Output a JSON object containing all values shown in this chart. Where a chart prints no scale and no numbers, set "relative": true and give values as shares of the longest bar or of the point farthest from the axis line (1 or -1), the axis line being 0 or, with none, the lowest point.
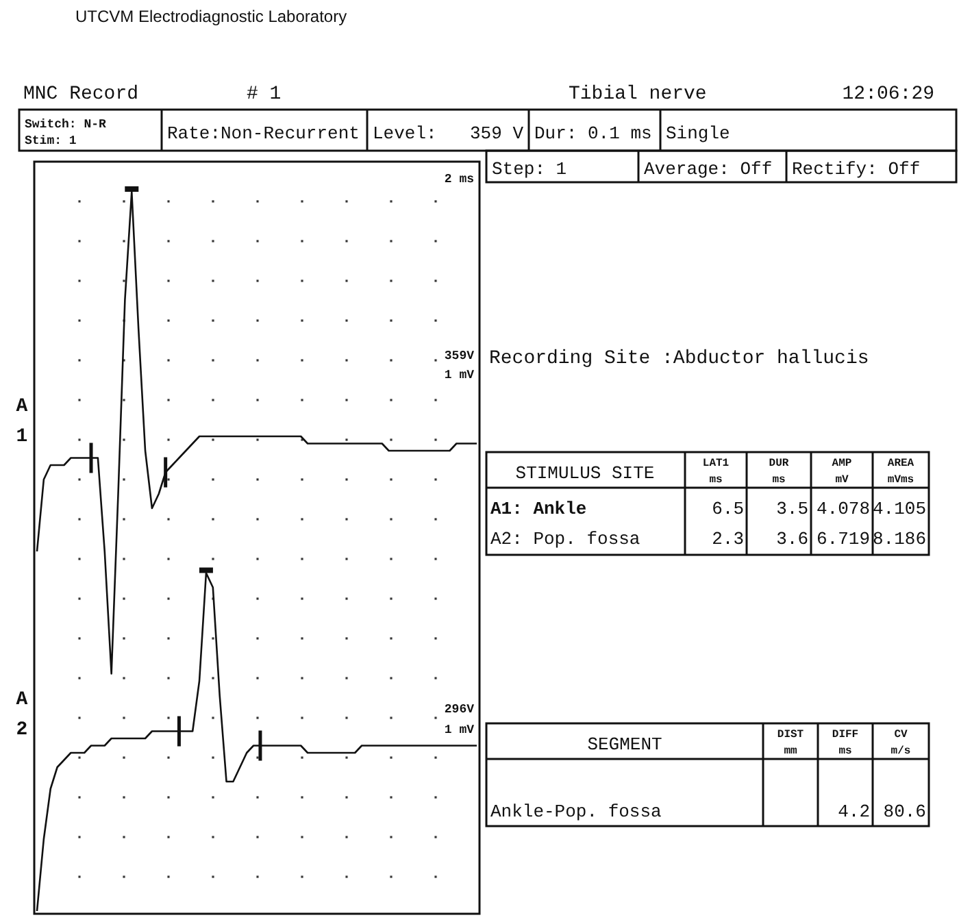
{
  "chart_data": [
    {
      "type": "other",
      "title": "UTCVM  Electrodiagnostic Laboratory",
      "annotations": [
        "MNC Record",
        "# 1",
        "Tibial nerve",
        "12:06:29",
        "Switch: N-R",
        "Stim: 1",
        "Rate:Non-Recurrent",
        "Level:",
        "359 V",
        "Dur: 0.1 ms",
        "Single",
        "Step: 1",
        "Average: Off",
        "Rectify: Off",
        "Recording Site  :Abductor hallucis"
      ]
    },
    {
      "type": "line",
      "relative": true,
      "line_style": "solid",
      "marker": "none",
      "categories": [
        null,
        null,
        null,
        null,
        null,
        null,
        null,
        null,
        null,
        null,
        null,
        null,
        null,
        null,
        null,
        null,
        null,
        null,
        null,
        null,
        null,
        null,
        null,
        null,
        null,
        null,
        null,
        null,
        null,
        null,
        null,
        null,
        null,
        null,
        null,
        null,
        null,
        null,
        null,
        null,
        null,
        null,
        null,
        null,
        null,
        null,
        null,
        null,
        null,
        null,
        null,
        null,
        null,
        null,
        null,
        null,
        null,
        null,
        null,
        null,
        null,
        null,
        null,
        null,
        null,
        null
      ],
      "series": [
        {
          "name": "A 1",
          "color": "#111111",
          "values": [
            0.5,
            0.6,
            0.62,
            0.62,
            0.62,
            0.63,
            0.63,
            0.63,
            0.63,
            0.63,
            0.5,
            0.33,
            0.58,
            0.85,
            1.0,
            0.81,
            0.64,
            0.56,
            0.58,
            0.61,
            0.62,
            0.63,
            0.64,
            0.65,
            0.66,
            0.66,
            0.66,
            0.66,
            0.66,
            0.66,
            0.66,
            0.66,
            0.66,
            0.66,
            0.66,
            0.66,
            0.66,
            0.66,
            0.66,
            0.66,
            0.65,
            0.65,
            0.65,
            0.65,
            0.65,
            0.65,
            0.65,
            0.65,
            0.65,
            0.65,
            0.65,
            0.65,
            0.64,
            0.64,
            0.64,
            0.64,
            0.64,
            0.64,
            0.64,
            0.64,
            0.64,
            0.64,
            0.65,
            0.65,
            0.65,
            0.65
          ]
        },
        {
          "name": "A 2",
          "color": "#111111",
          "values": [
            0,
            0.1,
            0.17,
            0.2,
            0.21,
            0.22,
            0.22,
            0.22,
            0.23,
            0.23,
            0.23,
            0.24,
            0.24,
            0.24,
            0.24,
            0.24,
            0.24,
            0.25,
            0.25,
            0.25,
            0.25,
            0.25,
            0.25,
            0.25,
            0.32,
            0.47,
            0.45,
            0.3,
            0.18,
            0.18,
            0.2,
            0.22,
            0.23,
            0.23,
            0.23,
            0.23,
            0.23,
            0.23,
            0.23,
            0.23,
            0.22,
            0.22,
            0.22,
            0.22,
            0.22,
            0.22,
            0.22,
            0.22,
            0.23,
            0.23,
            0.23,
            0.23,
            0.23,
            0.23,
            0.23,
            0.23,
            0.23,
            0.23,
            0.23,
            0.23,
            0.23,
            0.23,
            0.23,
            0.23,
            0.23,
            0.23
          ]
        }
      ],
      "annotations": [
        "2 ms",
        "359V",
        "1 mV",
        "296V",
        "1 mV"
      ]
    },
    {
      "type": "other",
      "annotations": [
        "STIMULUS SITE",
        "LAT1",
        "ms",
        "DUR",
        "ms",
        "AMP",
        "mV",
        "AREA",
        "mVms",
        "A1: Ankle",
        "6.5",
        "3.5",
        "4.078",
        "4.105",
        "A2: Pop. fossa",
        "2.3",
        "3.6",
        "6.719",
        "8.186"
      ]
    },
    {
      "type": "other",
      "annotations": [
        "SEGMENT",
        "DIST",
        "mm",
        "DIFF",
        "ms",
        "CV",
        "m/s",
        "Ankle-Pop. fossa",
        "4.2",
        "80.6"
      ]
    }
  ]
}
